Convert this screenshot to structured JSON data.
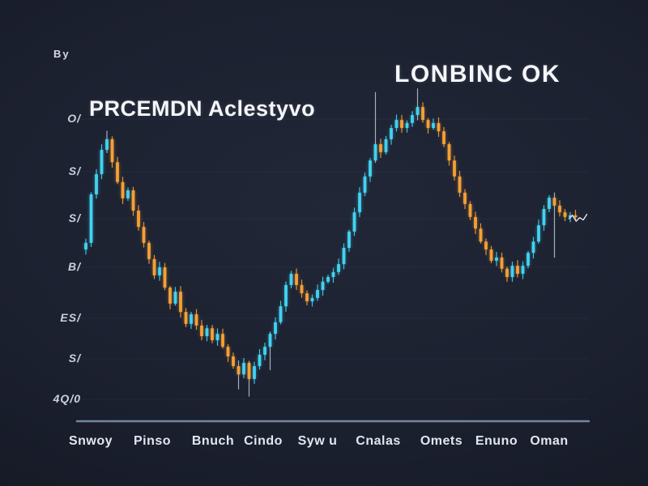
{
  "branding": {
    "corner_mark": "By"
  },
  "colors": {
    "background": "#1c2130",
    "up": "#41d3f2",
    "down": "#f5a035",
    "wick_gray": "#b4bfce",
    "axis_line": "#8399b3",
    "title_text": "#f4f6fa",
    "tick_text": "#c9d0de",
    "tail_line": "#dfe6ee"
  },
  "chart_data": {
    "type": "candlestick",
    "title": "PRCEMDN Aclestyvo",
    "subtitle": "LONBINC OK",
    "legend": "none",
    "grid": "faint-horizontal",
    "ylim": [
      0,
      100
    ],
    "y_labels": [
      "O/",
      "S/",
      "S/",
      "B/",
      "ES/",
      "S/",
      "4Q/0"
    ],
    "x_labels": [
      "Snwoy",
      "Pinso",
      "Bnuch",
      "Cindo",
      "Syw u",
      "Cnalas",
      "Omets",
      "Enuno",
      "Oman"
    ],
    "closes": [
      53.7,
      68.3,
      74.4,
      81.7,
      84.9,
      78.0,
      72.0,
      67.1,
      69.5,
      63.4,
      58.5,
      53.7,
      48.8,
      43.9,
      46.3,
      40.2,
      35.4,
      39.0,
      32.9,
      29.3,
      32.2,
      28.8,
      25.6,
      28.0,
      24.4,
      26.3,
      22.4,
      19.5,
      16.6,
      14.1,
      17.6,
      12.7,
      16.6,
      20.0,
      22.4,
      26.3,
      29.8,
      34.6,
      41.0,
      44.4,
      41.0,
      38.5,
      36.1,
      37.1,
      39.5,
      42.0,
      43.4,
      44.9,
      47.3,
      52.2,
      57.1,
      62.9,
      68.8,
      73.7,
      78.5,
      83.4,
      81.0,
      84.9,
      88.3,
      90.7,
      88.3,
      89.8,
      92.2,
      94.6,
      90.7,
      88.3,
      89.8,
      87.3,
      83.4,
      78.5,
      73.7,
      68.8,
      65.4,
      61.5,
      58.0,
      54.1,
      51.7,
      48.3,
      49.3,
      45.9,
      43.4,
      46.8,
      44.4,
      46.8,
      50.7,
      54.1,
      59.0,
      63.9,
      67.3,
      64.9,
      62.9,
      61.5,
      62.0,
      61.5
    ],
    "long_wicks_up": {
      "4": 6,
      "55": 58,
      "63": 16
    },
    "long_wicks_down": {
      "29": 12,
      "31": 16,
      "35": 26,
      "89": 58
    },
    "tail_prices": [
      61.0,
      62.0,
      60.2,
      61.3,
      60.6,
      62.3
    ]
  }
}
